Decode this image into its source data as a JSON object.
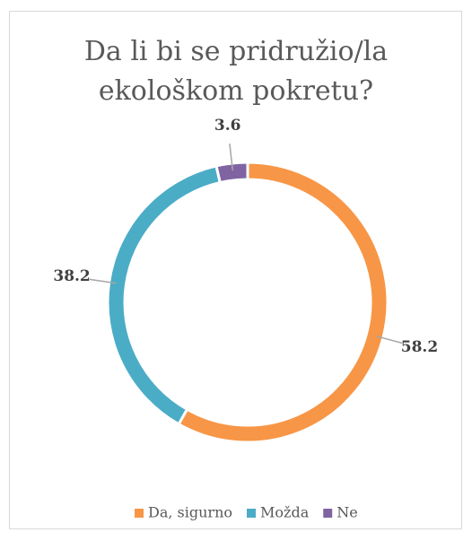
{
  "chart_data": {
    "type": "donut",
    "title": "Da li bi se pridružio/la ekološkom pokretu?",
    "categories": [
      "Da, sigurno",
      "Možda",
      "Ne"
    ],
    "values": [
      58.2,
      38.2,
      3.6
    ],
    "colors": [
      "#f79646",
      "#4bacc6",
      "#8064a2"
    ],
    "legend": "bottom"
  }
}
